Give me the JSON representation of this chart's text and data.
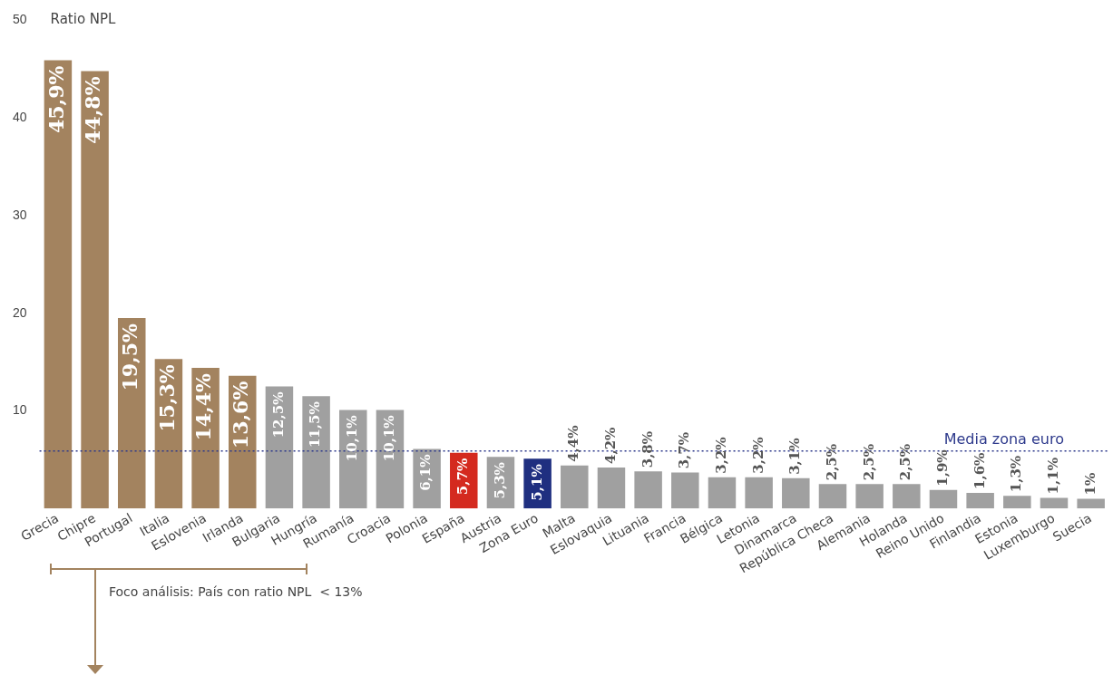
{
  "chart_data": {
    "type": "bar",
    "ylabel": "Ratio NPL",
    "categories": [
      "Grecia",
      "Chipre",
      "Portugal",
      "Italia",
      "Eslovenia",
      "Irlanda",
      "Bulgaria",
      "Hungría",
      "Rumanía",
      "Croacia",
      "Polonia",
      "España",
      "Austria",
      "Zona Euro",
      "Malta",
      "Eslovaquia",
      "Lituania",
      "Francia",
      "Bélgica",
      "Letonia",
      "Dinamarca",
      "República Checa",
      "Alemania",
      "Holanda",
      "Reino Unido",
      "Finlandia",
      "Estonia",
      "Luxemburgo",
      "Suecia"
    ],
    "values": [
      45.9,
      44.8,
      19.5,
      15.3,
      14.4,
      13.6,
      12.5,
      11.5,
      10.1,
      10.1,
      6.1,
      5.7,
      5.3,
      5.1,
      4.4,
      4.2,
      3.8,
      3.7,
      3.2,
      3.2,
      3.1,
      2.5,
      2.5,
      2.5,
      1.9,
      1.6,
      1.3,
      1.1,
      1
    ],
    "value_labels": [
      "45,9%",
      "44,8%",
      "19,5%",
      "15,3%",
      "14,4%",
      "13,6%",
      "12,5%",
      "11,5%",
      "10,1%",
      "10,1%",
      "6,1%",
      "5,7%",
      "5,3%",
      "5,1%",
      "4,4%",
      "4,2%",
      "3,8%",
      "3,7%",
      "3,2%",
      "3,2%",
      "3,1%",
      "2,5%",
      "2,5%",
      "2,5%",
      "1,9%",
      "1,6%",
      "1,3%",
      "1,1%",
      "1%"
    ],
    "colors": [
      "#a3835f",
      "#a3835f",
      "#a3835f",
      "#a3835f",
      "#a3835f",
      "#a3835f",
      "#a0a0a0",
      "#a0a0a0",
      "#a0a0a0",
      "#a0a0a0",
      "#a0a0a0",
      "#d42a1f",
      "#a0a0a0",
      "#1f2f80",
      "#a0a0a0",
      "#a0a0a0",
      "#a0a0a0",
      "#a0a0a0",
      "#a0a0a0",
      "#a0a0a0",
      "#a0a0a0",
      "#a0a0a0",
      "#a0a0a0",
      "#a0a0a0",
      "#a0a0a0",
      "#a0a0a0",
      "#a0a0a0",
      "#a0a0a0",
      "#a0a0a0"
    ],
    "ylim": [
      0,
      50
    ],
    "yticks": [
      10,
      20,
      30,
      40,
      50
    ],
    "grid": false,
    "legend": false,
    "ref_lines": [
      {
        "axis": "y",
        "value": 5.9,
        "label": "Media zona euro",
        "color": "#2e3a8c",
        "line_style": "dotted"
      }
    ],
    "annotations": [
      "Foco análisis: País con ratio NPL  < 13%"
    ]
  }
}
